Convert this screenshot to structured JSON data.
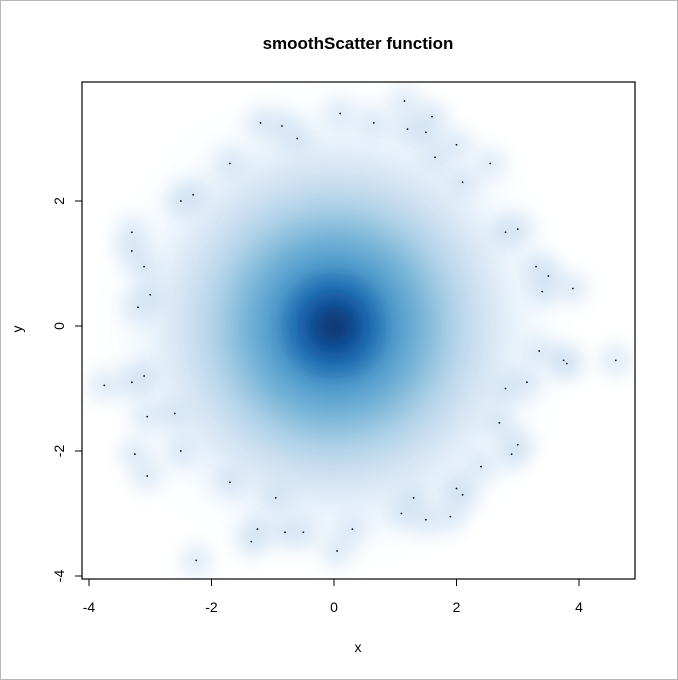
{
  "chart_data": {
    "type": "scatter",
    "title": "smoothScatter function",
    "xlabel": "x",
    "ylabel": "y",
    "xlim": [
      -4,
      5
    ],
    "ylim": [
      -4,
      4
    ],
    "x_ticks": [
      -4,
      -2,
      0,
      2,
      4
    ],
    "y_ticks": [
      -4,
      -2,
      0,
      2
    ],
    "x_tick_labels": [
      "-4",
      "-2",
      "0",
      "2",
      "4"
    ],
    "y_tick_labels": [
      "-4",
      "-2",
      "0",
      "2"
    ],
    "grid": false,
    "legend": "none",
    "density_center": [
      0,
      0
    ],
    "colors": {
      "density_low": "#f7fbff",
      "density_mid": "#6baed6",
      "density_high": "#08306b",
      "outlier_point": "#000000",
      "frame": "#000000"
    },
    "outlier_points": [
      [
        -3.75,
        -0.95
      ],
      [
        -3.3,
        -0.9
      ],
      [
        -3.1,
        -0.8
      ],
      [
        -3.05,
        -1.45
      ],
      [
        -3.3,
        1.5
      ],
      [
        -3.1,
        0.95
      ],
      [
        -3.0,
        0.5
      ],
      [
        -3.3,
        1.2
      ],
      [
        -3.2,
        0.3
      ],
      [
        -2.3,
        2.1
      ],
      [
        -1.7,
        2.6
      ],
      [
        -3.25,
        -2.05
      ],
      [
        -3.05,
        -2.4
      ],
      [
        -2.25,
        -3.75
      ],
      [
        -1.25,
        -3.25
      ],
      [
        -1.35,
        -3.45
      ],
      [
        -0.8,
        -3.3
      ],
      [
        -0.5,
        -3.3
      ],
      [
        0.3,
        -3.25
      ],
      [
        0.05,
        -3.6
      ],
      [
        1.1,
        -3.0
      ],
      [
        1.5,
        -3.1
      ],
      [
        1.9,
        -3.05
      ],
      [
        2.0,
        -2.6
      ],
      [
        2.1,
        -2.7
      ],
      [
        2.4,
        -2.25
      ],
      [
        2.9,
        -2.05
      ],
      [
        3.0,
        -1.9
      ],
      [
        2.8,
        -1.0
      ],
      [
        3.15,
        -0.9
      ],
      [
        3.8,
        -0.6
      ],
      [
        3.75,
        -0.55
      ],
      [
        4.6,
        -0.55
      ],
      [
        3.4,
        0.55
      ],
      [
        3.5,
        0.8
      ],
      [
        3.9,
        0.6
      ],
      [
        3.3,
        0.95
      ],
      [
        3.0,
        1.55
      ],
      [
        2.8,
        1.5
      ],
      [
        2.1,
        2.3
      ],
      [
        2.55,
        2.6
      ],
      [
        1.65,
        2.7
      ],
      [
        2.0,
        2.9
      ],
      [
        1.2,
        3.15
      ],
      [
        1.5,
        3.1
      ],
      [
        1.15,
        3.6
      ],
      [
        1.6,
        3.35
      ],
      [
        0.65,
        3.25
      ],
      [
        -0.6,
        3.0
      ],
      [
        -0.85,
        3.2
      ],
      [
        -1.2,
        3.25
      ],
      [
        0.1,
        3.4
      ],
      [
        -2.5,
        2.0
      ],
      [
        -2.6,
        -1.4
      ],
      [
        -2.5,
        -2.0
      ],
      [
        1.3,
        -2.75
      ],
      [
        -0.95,
        -2.75
      ],
      [
        -1.7,
        -2.5
      ],
      [
        2.7,
        -1.55
      ],
      [
        3.35,
        -0.4
      ]
    ]
  }
}
